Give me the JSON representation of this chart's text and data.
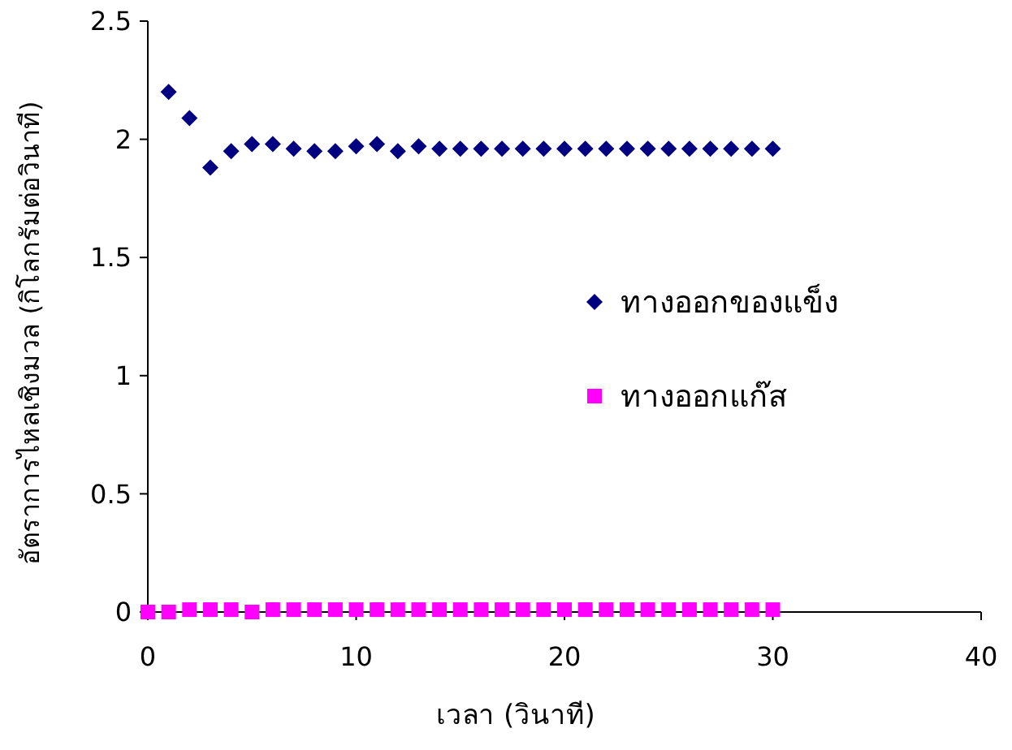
{
  "chart_data": {
    "type": "scatter",
    "xlabel": "เวลา (วินาที)",
    "ylabel": "อัตราการไหลเชิงมวล (กิโลกรัมต่อวินาที)",
    "xlim": [
      0,
      40
    ],
    "xticks": [
      0,
      10,
      20,
      30,
      40
    ],
    "ylim": [
      0,
      2.5
    ],
    "yticks": [
      0,
      0.5,
      1,
      1.5,
      2,
      2.5
    ],
    "grid": false,
    "legend": "right",
    "x": [
      0,
      1,
      2,
      3,
      4,
      5,
      6,
      7,
      8,
      9,
      10,
      11,
      12,
      13,
      14,
      15,
      16,
      17,
      18,
      19,
      20,
      21,
      22,
      23,
      24,
      25,
      26,
      27,
      28,
      29,
      30
    ],
    "series": [
      {
        "name": "ทางออกของแข็ง",
        "color": "#000080",
        "marker": "diamond",
        "values": [
          null,
          2.2,
          2.09,
          1.88,
          1.95,
          1.98,
          1.98,
          1.96,
          1.95,
          1.95,
          1.97,
          1.98,
          1.95,
          1.97,
          1.96,
          1.96,
          1.96,
          1.96,
          1.96,
          1.96,
          1.96,
          1.96,
          1.96,
          1.96,
          1.96,
          1.96,
          1.96,
          1.96,
          1.96,
          1.96,
          1.96
        ]
      },
      {
        "name": "ทางออกแก๊ส",
        "color": "#ff00ff",
        "marker": "square",
        "values": [
          0,
          0,
          0.01,
          0.01,
          0.01,
          0,
          0.01,
          0.01,
          0.01,
          0.01,
          0.01,
          0.01,
          0.01,
          0.01,
          0.01,
          0.01,
          0.01,
          0.01,
          0.01,
          0.01,
          0.01,
          0.01,
          0.01,
          0.01,
          0.01,
          0.01,
          0.01,
          0.01,
          0.01,
          0.01,
          0.01
        ]
      }
    ]
  }
}
